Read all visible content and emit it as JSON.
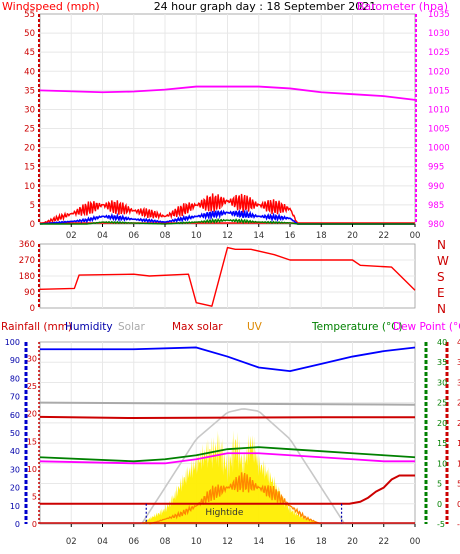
{
  "colors": {
    "wind": "#ff0000",
    "wind_avg": "#0000ff",
    "wind_low": "#008000",
    "barometer": "#ff00ff",
    "bearing": "#ff0000",
    "humidity": "#0000ff",
    "solar": "#aaaaaa",
    "maxsolar": "#c8c8c8",
    "temperature": "#008000",
    "dewpoint": "#ff00ff",
    "indoor": "#cc0000",
    "rain": "#cc0000",
    "uv": "#ffee00",
    "uv_line": "#ff8800",
    "grid": "#e8e8e8",
    "axis_blue": "#0000cc"
  },
  "chart_data": [
    {
      "type": "line",
      "title": "24 hour graph day : 18 September 2021",
      "left_label": "Windspeed (mph)",
      "right_label": "Barometer (hpa)",
      "x_ticks": [
        "02",
        "04",
        "06",
        "08",
        "10",
        "12",
        "14",
        "16",
        "18",
        "20",
        "22",
        "00"
      ],
      "ylim_left": [
        0,
        55
      ],
      "yticks_left": [
        "0",
        "5",
        "10",
        "15",
        "20",
        "25",
        "30",
        "35",
        "40",
        "45",
        "50",
        "55"
      ],
      "ylim_right": [
        980,
        1035
      ],
      "yticks_right": [
        "980",
        "985",
        "990",
        "995",
        "1000",
        "1005",
        "1010",
        "1015",
        "1020",
        "1025",
        "1030",
        "1035"
      ],
      "barometer": {
        "x": [
          0,
          4,
          6,
          8,
          10,
          12,
          14,
          16,
          18,
          20,
          22,
          24
        ],
        "y": [
          1015,
          1014.5,
          1014.7,
          1015.2,
          1016,
          1016,
          1016,
          1015.5,
          1014.5,
          1014,
          1013.5,
          1012.5
        ]
      },
      "wind_gust": {
        "x": [
          0,
          3,
          4,
          8,
          10,
          12,
          14,
          16,
          16.5,
          24
        ],
        "y": [
          0,
          4,
          5,
          2,
          5,
          6,
          5,
          4,
          0,
          0
        ]
      },
      "wind_avg": {
        "x": [
          0,
          3,
          4,
          8,
          10,
          12,
          14,
          16,
          16.5,
          24
        ],
        "y": [
          0,
          1,
          2,
          0.5,
          2,
          3,
          2,
          1.5,
          0,
          0
        ]
      },
      "wind_low": {
        "x": [
          0,
          3,
          4,
          8,
          10,
          12,
          14,
          16,
          16.5,
          24
        ],
        "y": [
          0,
          0,
          0.5,
          0,
          0.5,
          1,
          0.5,
          0.3,
          0,
          0
        ]
      }
    },
    {
      "type": "line",
      "title": "",
      "ylim": [
        0,
        360
      ],
      "yticks": [
        "0",
        "90",
        "180",
        "270",
        "360"
      ],
      "right_labels": [
        "N",
        "W",
        "S",
        "E",
        "N"
      ],
      "bearing": {
        "x": [
          0,
          2.2,
          2.5,
          6,
          7,
          9.5,
          10,
          11,
          12,
          12.5,
          13.5,
          15,
          16,
          17,
          20,
          20.5,
          22.5,
          24
        ],
        "y": [
          105,
          110,
          185,
          190,
          180,
          190,
          30,
          10,
          340,
          330,
          330,
          300,
          270,
          270,
          270,
          240,
          230,
          100
        ]
      }
    },
    {
      "type": "line",
      "title": "",
      "header": {
        "rain": "Rainfall (mm)",
        "humidity": "Humidity",
        "solar": "Solar",
        "maxsolar": "Max solar",
        "uv": "UV",
        "temperature": "Temperature (°C)",
        "dewpoint": "Dew Point (°C)"
      },
      "annotation": "Hightide",
      "yticks_rain": [
        "0",
        "5",
        "10",
        "15",
        "20",
        "25",
        "30"
      ],
      "yticks_hum": [
        "0",
        "10",
        "20",
        "30",
        "40",
        "50",
        "60",
        "70",
        "80",
        "90",
        "100"
      ],
      "yticks_temp": [
        "-5",
        "0",
        "5",
        "10",
        "15",
        "20",
        "25",
        "30",
        "35",
        "40"
      ],
      "ylim_temp": [
        -5,
        40
      ],
      "humidity": {
        "x": [
          0,
          6,
          10,
          12,
          14,
          16,
          18,
          20,
          22,
          24
        ],
        "y": [
          96,
          96,
          97,
          92,
          86,
          84,
          88,
          92,
          95,
          97
        ]
      },
      "solar_line": {
        "x": [
          0,
          24
        ],
        "y": [
          25,
          24.5
        ]
      },
      "indoor_temp": {
        "x": [
          0,
          6,
          12,
          18,
          24
        ],
        "y": [
          21.5,
          21.2,
          21.3,
          21.4,
          21.4
        ]
      },
      "temperature": {
        "x": [
          0,
          6,
          8,
          10,
          12,
          14,
          16,
          18,
          20,
          22,
          24
        ],
        "y": [
          11.5,
          10.5,
          11,
          12,
          13.5,
          14,
          13.5,
          13,
          12.5,
          12,
          11.5
        ]
      },
      "dewpoint": {
        "x": [
          0,
          6,
          8,
          10,
          12,
          14,
          16,
          18,
          20,
          22,
          24
        ],
        "y": [
          10.5,
          10,
          10,
          11,
          12.5,
          12.5,
          12,
          11.5,
          11,
          10.5,
          10.5
        ]
      },
      "rain_rate": {
        "x": [
          0,
          19.8,
          20.5,
          21,
          21.5,
          22,
          22.5,
          23,
          24
        ],
        "y": [
          0,
          0,
          0.5,
          1.5,
          3,
          4,
          6,
          7,
          7
        ]
      },
      "maxsolar": {
        "x": [
          6.5,
          8,
          10,
          12,
          13,
          14,
          16,
          18,
          19.5
        ],
        "y": [
          0,
          3,
          7,
          9.2,
          9.5,
          9.3,
          7,
          3,
          0
        ]
      },
      "uv_fill": {
        "x": [
          6.5,
          8,
          9,
          10,
          11,
          11.5,
          12,
          12.5,
          13,
          13.5,
          14,
          15,
          16,
          17,
          18
        ],
        "y": [
          0,
          1.5,
          3,
          4,
          6,
          7.5,
          6,
          8,
          5,
          6,
          4,
          3,
          1.5,
          0.5,
          0
        ]
      },
      "uv_line": {
        "x": [
          7,
          9,
          10,
          11,
          12,
          13,
          14,
          15,
          16,
          17,
          18
        ],
        "y": [
          0,
          0.8,
          1.5,
          2.5,
          3,
          3.5,
          3,
          2.5,
          1.5,
          0.5,
          0
        ]
      },
      "tide_markers": [
        6.8,
        19.3
      ]
    }
  ]
}
